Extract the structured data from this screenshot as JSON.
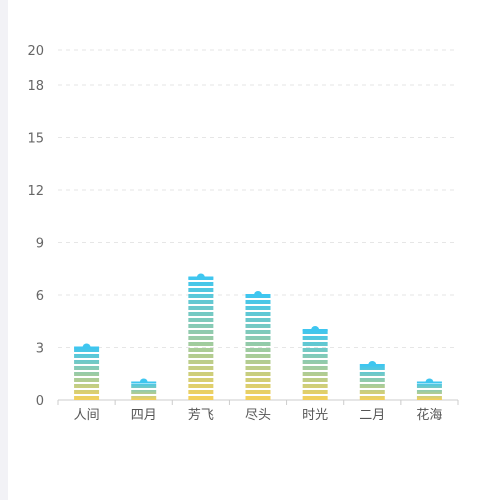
{
  "chart_data": {
    "type": "bar",
    "categories": [
      "人间",
      "四月",
      "芳飞",
      "尽头",
      "时光",
      "二月",
      "花海"
    ],
    "values": [
      3,
      1,
      7,
      6,
      4,
      2,
      1
    ],
    "ylim": [
      0,
      20
    ],
    "yticks": [
      0,
      3,
      6,
      9,
      12,
      15,
      18,
      20
    ],
    "grid": true,
    "colors": {
      "top": "#3ec6f0",
      "bottom": "#f5d05a",
      "grid": "#e6e6e6",
      "axis": "#cccccc"
    }
  }
}
